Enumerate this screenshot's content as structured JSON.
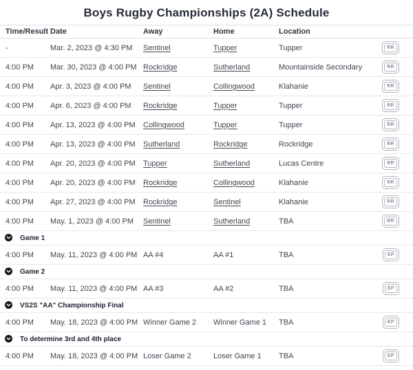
{
  "title": "Boys Rugby Championships (2A) Schedule",
  "colors": {
    "title_text": "#262a3b",
    "body_text": "#42434e",
    "row_border": "#e5e7eb",
    "badge_border": "#b2b3bc",
    "section_icon_fill": "#15171f"
  },
  "icons": {
    "section_marker": "chevron-down-circle-icon"
  },
  "table": {
    "columns": [
      "Time/Result",
      "Date",
      "Away",
      "Home",
      "Location",
      ""
    ],
    "groups": [
      {
        "label": null,
        "rows": [
          {
            "time": "-",
            "date": "Mar. 2, 2023 @ 4:30 PM",
            "away": "Sentinel",
            "home": "Tupper",
            "location": "Tupper",
            "linked": true,
            "badge": "RR"
          },
          {
            "time": "4:00 PM",
            "date": "Mar. 30, 2023 @ 4:00 PM",
            "away": "Rockridge",
            "home": "Sutherland",
            "location": "Mountainside Secondary",
            "linked": true,
            "badge": "RR"
          },
          {
            "time": "4:00 PM",
            "date": "Apr. 3, 2023 @ 4:00 PM",
            "away": "Sentinel",
            "home": "Collingwood",
            "location": "Klahanie",
            "linked": true,
            "badge": "RR"
          },
          {
            "time": "4:00 PM",
            "date": "Apr. 6, 2023 @ 4:00 PM",
            "away": "Rockridge",
            "home": "Tupper",
            "location": "Tupper",
            "linked": true,
            "badge": "RR"
          },
          {
            "time": "4:00 PM",
            "date": "Apr. 13, 2023 @ 4:00 PM",
            "away": "Collingwood",
            "home": "Tupper",
            "location": "Tupper",
            "linked": true,
            "badge": "RR"
          },
          {
            "time": "4:00 PM",
            "date": "Apr. 13, 2023 @ 4:00 PM",
            "away": "Sutherland",
            "home": "Rockridge",
            "location": "Rockridge",
            "linked": true,
            "badge": "RR"
          },
          {
            "time": "4:00 PM",
            "date": "Apr. 20, 2023 @ 4:00 PM",
            "away": "Tupper",
            "home": "Sutherland",
            "location": "Lucas Centre",
            "linked": true,
            "badge": "RR"
          },
          {
            "time": "4:00 PM",
            "date": "Apr. 20, 2023 @ 4:00 PM",
            "away": "Rockridge",
            "home": "Collingwood",
            "location": "Klahanie",
            "linked": true,
            "badge": "RR"
          },
          {
            "time": "4:00 PM",
            "date": "Apr. 27, 2023 @ 4:00 PM",
            "away": "Rockridge",
            "home": "Sentinel",
            "location": "Klahanie",
            "linked": true,
            "badge": "RR"
          },
          {
            "time": "4:00 PM",
            "date": "May. 1, 2023 @ 4:00 PM",
            "away": "Sentinel",
            "home": "Sutherland",
            "location": "TBA",
            "linked": true,
            "badge": "RR"
          }
        ]
      },
      {
        "label": "Game 1",
        "rows": [
          {
            "time": "4:00 PM",
            "date": "May. 11, 2023 @ 4:00 PM",
            "away": "AA #4",
            "home": "AA #1",
            "location": "TBA",
            "linked": false,
            "badge": "EP"
          }
        ]
      },
      {
        "label": "Game 2",
        "rows": [
          {
            "time": "4:00 PM",
            "date": "May. 11, 2023 @ 4:00 PM",
            "away": "AA #3",
            "home": "AA #2",
            "location": "TBA",
            "linked": false,
            "badge": "EP"
          }
        ]
      },
      {
        "label": "VS2S \"AA\" Championship Final",
        "rows": [
          {
            "time": "4:00 PM",
            "date": "May. 18, 2023 @ 4:00 PM",
            "away": "Winner Game 2",
            "home": "Winner Game 1",
            "location": "TBA",
            "linked": false,
            "badge": "EP"
          }
        ]
      },
      {
        "label": "To determine 3rd and 4th place",
        "rows": [
          {
            "time": "4:00 PM",
            "date": "May. 18, 2023 @ 4:00 PM",
            "away": "Loser Game 2",
            "home": "Loser Game 1",
            "location": "TBA",
            "linked": false,
            "badge": "EP"
          }
        ]
      }
    ]
  }
}
